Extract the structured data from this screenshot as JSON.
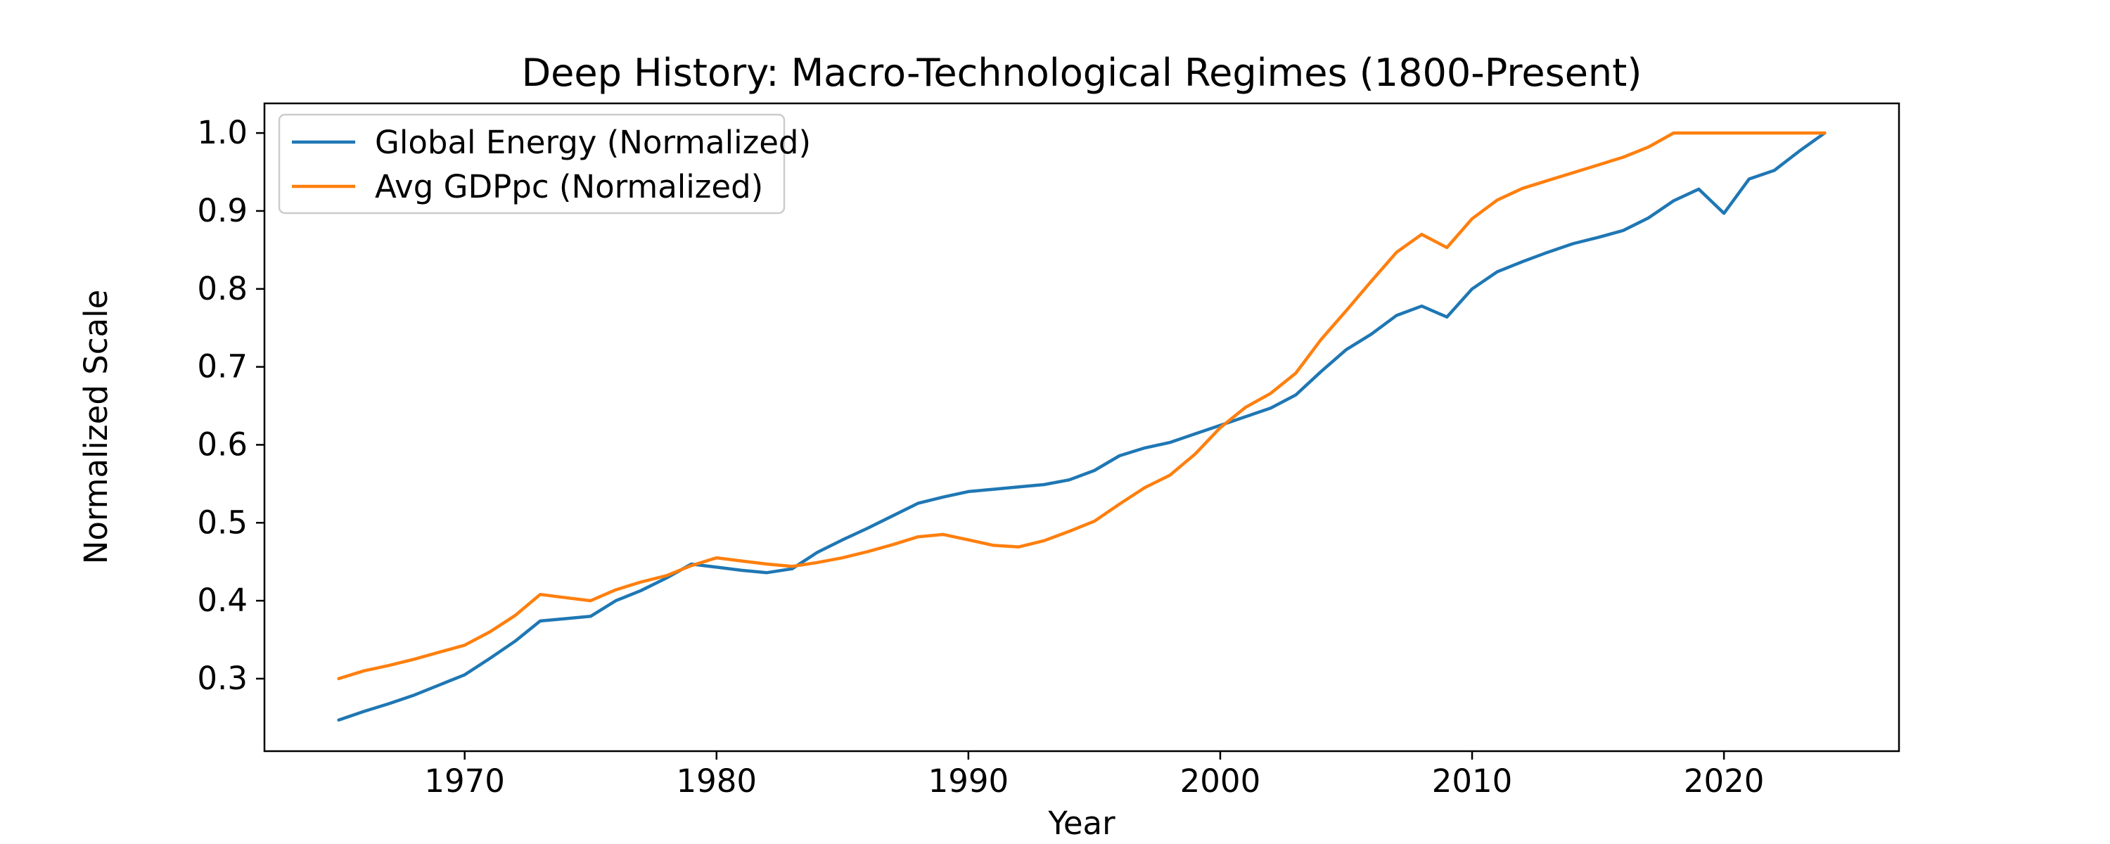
{
  "chart_data": {
    "type": "line",
    "title": "Deep History: Macro-Technological Regimes (1800-Present)",
    "xlabel": "Year",
    "ylabel": "Normalized Scale",
    "grid": false,
    "legend_position": "upper left",
    "xlim": [
      1962.05,
      2026.95
    ],
    "ylim": [
      0.207,
      1.038
    ],
    "xticks": [
      1970,
      1980,
      1990,
      2000,
      2010,
      2020
    ],
    "xtick_labels": [
      "1970",
      "1980",
      "1990",
      "2000",
      "2010",
      "2020"
    ],
    "yticks": [
      0.3,
      0.4,
      0.5,
      0.6,
      0.7,
      0.8,
      0.9,
      1.0
    ],
    "ytick_labels": [
      "0.3",
      "0.4",
      "0.5",
      "0.6",
      "0.7",
      "0.8",
      "0.9",
      "1.0"
    ],
    "x": [
      1965,
      1966,
      1967,
      1968,
      1969,
      1970,
      1971,
      1972,
      1973,
      1974,
      1975,
      1976,
      1977,
      1978,
      1979,
      1980,
      1981,
      1982,
      1983,
      1984,
      1985,
      1986,
      1987,
      1988,
      1989,
      1990,
      1991,
      1992,
      1993,
      1994,
      1995,
      1996,
      1997,
      1998,
      1999,
      2000,
      2001,
      2002,
      2003,
      2004,
      2005,
      2006,
      2007,
      2008,
      2009,
      2010,
      2011,
      2012,
      2013,
      2014,
      2015,
      2016,
      2017,
      2018,
      2019,
      2020,
      2021,
      2022,
      2023,
      2024
    ],
    "series": [
      {
        "name": "Global Energy (Normalized)",
        "color": "#1f77b4",
        "values": [
          0.247,
          0.258,
          0.268,
          0.279,
          0.292,
          0.305,
          0.326,
          0.348,
          0.374,
          0.377,
          0.38,
          0.4,
          0.413,
          0.429,
          0.447,
          0.443,
          0.439,
          0.436,
          0.441,
          0.462,
          0.478,
          0.493,
          0.509,
          0.525,
          0.533,
          0.54,
          0.543,
          0.546,
          0.549,
          0.555,
          0.567,
          0.586,
          0.596,
          0.603,
          0.614,
          0.625,
          0.636,
          0.647,
          0.664,
          0.694,
          0.722,
          0.742,
          0.766,
          0.778,
          0.764,
          0.8,
          0.822,
          0.835,
          0.847,
          0.858,
          0.866,
          0.875,
          0.891,
          0.913,
          0.928,
          0.897,
          0.941,
          0.952,
          0.977,
          1.0
        ]
      },
      {
        "name": "Avg GDPpc (Normalized)",
        "color": "#ff7f0e",
        "values": [
          0.3,
          0.31,
          0.317,
          0.325,
          0.334,
          0.343,
          0.36,
          0.381,
          0.408,
          0.404,
          0.4,
          0.414,
          0.424,
          0.432,
          0.445,
          0.455,
          0.451,
          0.447,
          0.444,
          0.449,
          0.455,
          0.463,
          0.472,
          0.482,
          0.485,
          0.478,
          0.471,
          0.469,
          0.477,
          0.489,
          0.502,
          0.524,
          0.545,
          0.561,
          0.588,
          0.622,
          0.648,
          0.666,
          0.692,
          0.735,
          0.772,
          0.81,
          0.847,
          0.87,
          0.853,
          0.89,
          0.914,
          0.929,
          0.939,
          0.949,
          0.959,
          0.969,
          0.982,
          1.0,
          1.0,
          1.0,
          1.0,
          1.0,
          1.0,
          1.0
        ]
      }
    ],
    "axis_color": "#000000",
    "legend_border_color": "#cccccc",
    "legend_background": "#ffffff"
  },
  "layout_note_colors": {
    "series_blue": "#1f77b4",
    "series_orange": "#ff7f0e"
  }
}
